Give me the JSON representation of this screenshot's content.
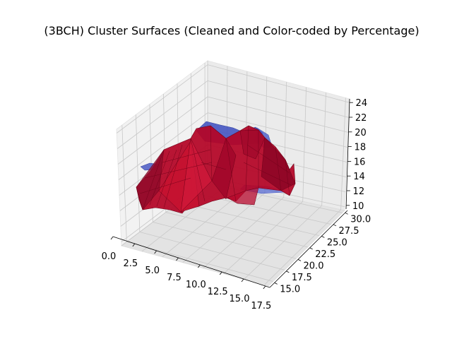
{
  "chart_data": {
    "type": "3d-surface",
    "title": "(3BCH) Cluster Surfaces (Cleaned and Color-coded by Percentage)",
    "xlabel": "",
    "ylabel": "",
    "zlabel": "",
    "x_ticks": [
      "0.0",
      "2.5",
      "5.0",
      "7.5",
      "10.0",
      "12.5",
      "15.0",
      "17.5"
    ],
    "y_ticks": [
      "15.0",
      "17.5",
      "20.0",
      "22.5",
      "25.0",
      "27.5",
      "30.0"
    ],
    "z_ticks": [
      "10",
      "12",
      "14",
      "16",
      "18",
      "20",
      "22",
      "24"
    ],
    "xlim": [
      0,
      18
    ],
    "ylim": [
      14,
      30.5
    ],
    "zlim": [
      9.5,
      24.5
    ],
    "grid": true,
    "series": [
      {
        "color": "#3b4cc0",
        "z_range": [
          12,
          20
        ]
      },
      {
        "color": "#b40426",
        "z_range": [
          10,
          20
        ]
      }
    ]
  }
}
